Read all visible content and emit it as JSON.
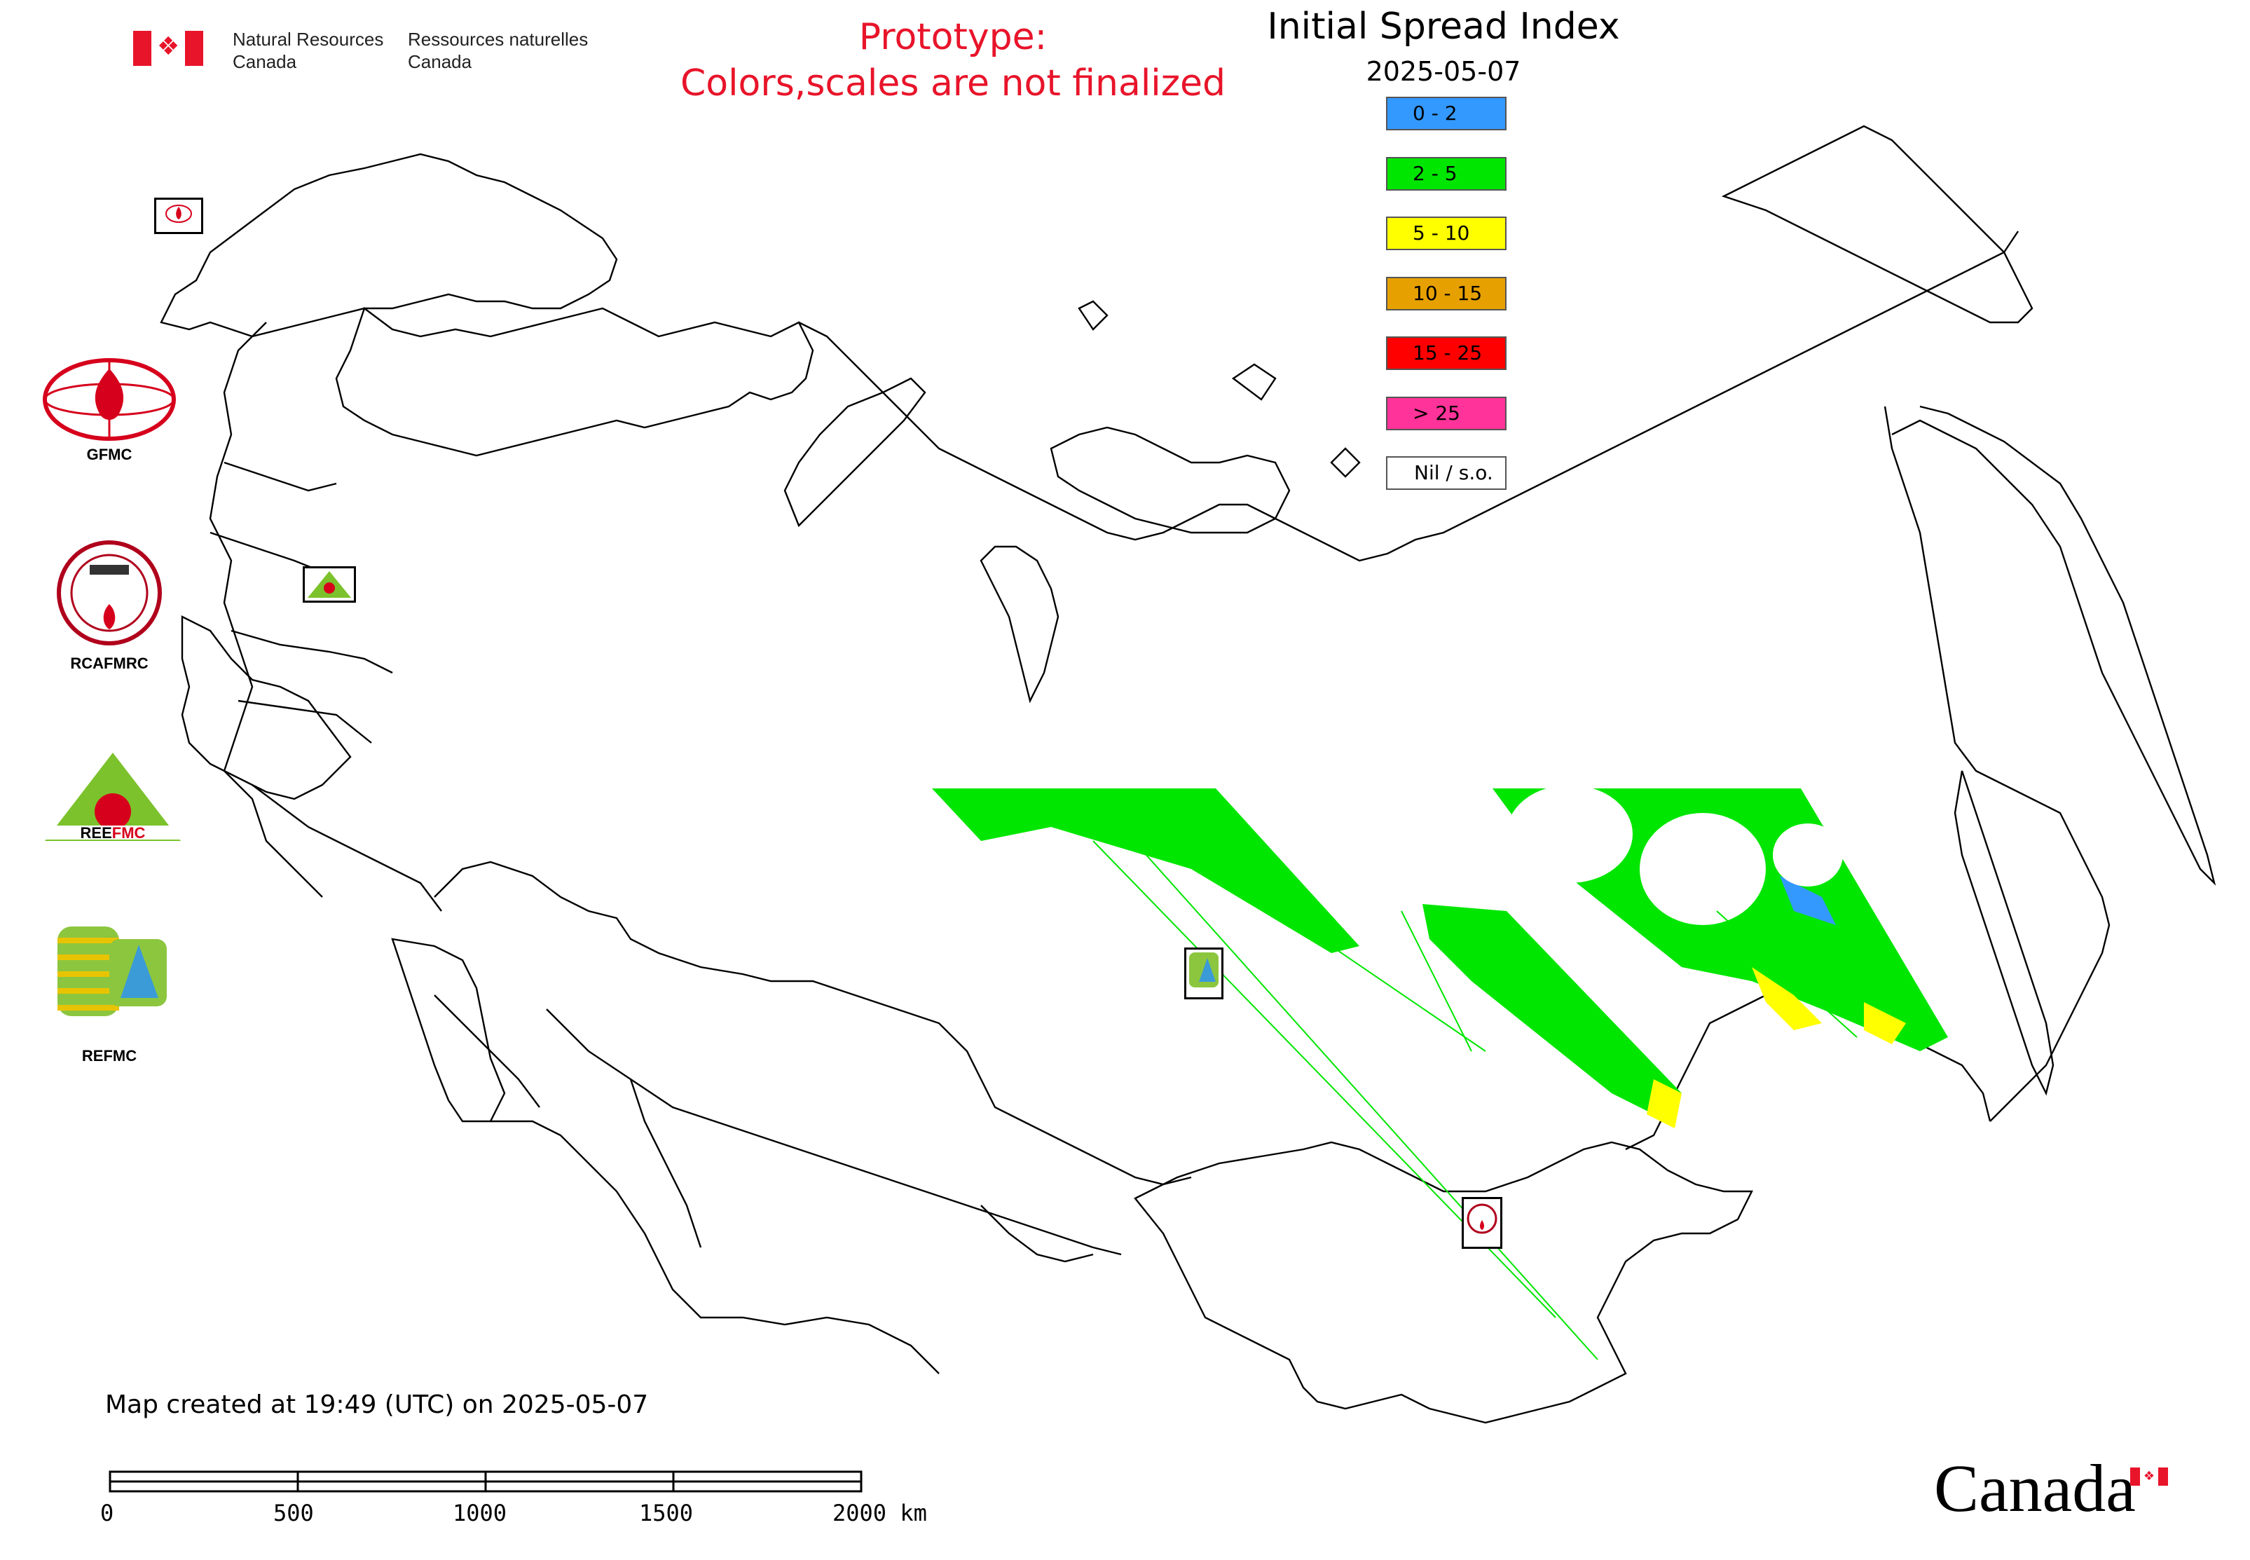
{
  "header": {
    "department_en": [
      "Natural Resources",
      "Canada"
    ],
    "department_fr": [
      "Ressources naturelles",
      "Canada"
    ],
    "prototype_lines": [
      "Prototype:",
      "Colors,scales are not finalized"
    ],
    "title": "Initial Spread Index",
    "date": "2025-05-07"
  },
  "legend": [
    {
      "label": "0 - 2",
      "color": "#3399ff"
    },
    {
      "label": "2 - 5",
      "color": "#00e600"
    },
    {
      "label": "5 - 10",
      "color": "#ffff00"
    },
    {
      "label": "10 - 15",
      "color": "#e6a000"
    },
    {
      "label": "15 - 25",
      "color": "#ff0000"
    },
    {
      "label": "> 25",
      "color": "#ff3399"
    },
    {
      "label": "Nil / s.o.",
      "color": "#ffffff"
    }
  ],
  "logos": {
    "gfmc": "GFMC",
    "rcafmrc": "RCAFMRC",
    "reefmc": "REEFMC",
    "refmc": "REFMC"
  },
  "footer": {
    "created_text": "Map created at 19:49 (UTC) on 2025-05-07",
    "scale_labels": [
      "0",
      "500",
      "1000",
      "1500",
      "2000 km"
    ],
    "wordmark": "Canada"
  }
}
